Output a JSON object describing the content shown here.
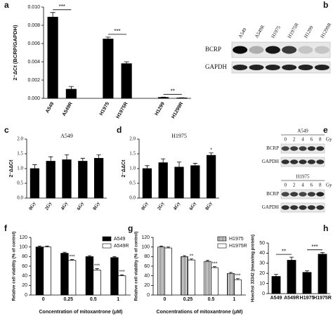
{
  "panel_labels": [
    "a",
    "b",
    "c",
    "d",
    "e",
    "f",
    "g",
    "h"
  ],
  "chart_data": [
    {
      "type": "bar",
      "ylabel": "2⁻ΔCt (BCRP/GAPDH)",
      "categories": [
        "A549",
        "A549R",
        "H1975",
        "H1975R",
        "H1299",
        "H1299R"
      ],
      "values": [
        0.0089,
        0.001,
        0.0065,
        0.0038,
        0.0001,
        5e-05
      ],
      "errors": [
        0.0005,
        0.0003,
        0.0002,
        0.0002,
        3e-05,
        2e-05
      ],
      "color": "#000000",
      "ylim": [
        0,
        0.01
      ],
      "yticks": [
        {
          "value": 0,
          "label": "0.000"
        },
        {
          "value": 0.002,
          "label": "0.002"
        },
        {
          "value": 0.004,
          "label": "0.004"
        },
        {
          "value": 0.006,
          "label": "0.006"
        },
        {
          "value": 0.008,
          "label": "0.008"
        },
        {
          "value": 0.01,
          "label": "0.010"
        }
      ],
      "annotations": [
        "***",
        "***",
        "**"
      ]
    },
    {
      "type": "bar",
      "title": "A549",
      "ylabel": "2⁻ΔΔCt",
      "categories": [
        "0Gy",
        "2Gy",
        "4Gy",
        "6Gy",
        "8Gy"
      ],
      "values": [
        1.0,
        1.25,
        1.3,
        1.25,
        1.35
      ],
      "errors": [
        0.13,
        0.15,
        0.17,
        0.1,
        0.12
      ],
      "color": "#000000",
      "ylim": [
        0,
        2
      ],
      "yticks": [
        {
          "value": 0,
          "label": "0.0"
        },
        0.5,
        {
          "value": 1,
          "label": "1.0"
        },
        1.5,
        {
          "value": 2,
          "label": "2.0"
        }
      ]
    },
    {
      "type": "bar",
      "title": "H1975",
      "ylabel": "2⁻ΔΔCt",
      "categories": [
        "0Gy",
        "2Gy",
        "4Gy",
        "6Gy",
        "8Gy"
      ],
      "values": [
        1.0,
        1.2,
        1.05,
        1.1,
        1.45
      ],
      "errors": [
        0.1,
        0.13,
        0.17,
        0.08,
        0.08
      ],
      "significance": [
        null,
        null,
        null,
        null,
        "*"
      ],
      "color": "#000000",
      "ylim": [
        0,
        2
      ],
      "yticks": [
        {
          "value": 0,
          "label": "0.0"
        },
        0.5,
        {
          "value": 1,
          "label": "1.0"
        },
        1.5,
        {
          "value": 2,
          "label": "2.0"
        }
      ]
    },
    {
      "type": "bar",
      "xlabel": "Concentration of mitoxantrone (μM)",
      "ylabel": "Relative cell viability (% of control)",
      "categories": [
        "0",
        "0.25",
        "0.5",
        "1"
      ],
      "series": [
        {
          "name": "A549",
          "color": "#000000",
          "values": [
            100,
            87,
            80,
            78
          ],
          "errors": [
            2,
            2,
            2,
            2
          ]
        },
        {
          "name": "A549R",
          "color": "#ffffff",
          "values": [
            100,
            72,
            52,
            40
          ],
          "errors": [
            2,
            2,
            3,
            2
          ],
          "significance": [
            null,
            "***",
            "***",
            "***"
          ]
        }
      ],
      "ylim": [
        0,
        120
      ],
      "yticks": [
        0,
        20,
        40,
        60,
        80,
        100,
        120
      ],
      "legend": "top-right"
    },
    {
      "type": "bar",
      "xlabel": "Concentrations of mitoxantrone (μM)",
      "ylabel": "Relative cell viability (% of control)",
      "categories": [
        "0",
        "0.25",
        "0.5",
        "1"
      ],
      "series": [
        {
          "name": "H1975",
          "color": "#888888",
          "pattern": "stripes",
          "values": [
            100,
            80,
            70,
            45
          ],
          "errors": [
            2,
            2,
            2,
            2
          ]
        },
        {
          "name": "H1975R",
          "color": "#ffffff",
          "values": [
            98,
            73,
            57,
            32
          ],
          "errors": [
            2,
            2,
            2,
            2
          ],
          "significance": [
            null,
            "**",
            "***",
            "***"
          ]
        }
      ],
      "ylim": [
        0,
        120
      ],
      "yticks": [
        0,
        20,
        40,
        60,
        80,
        100,
        120
      ],
      "legend": "top-right"
    },
    {
      "type": "bar",
      "ylabel": "Hoechst 33342 (mean/mg protein)",
      "categories": [
        "A549",
        "A549R",
        "H1975",
        "H1975R"
      ],
      "values": [
        17,
        33,
        21,
        39
      ],
      "errors": [
        2,
        3,
        1.5,
        1.5
      ],
      "color": "#000000",
      "ylim": [
        0,
        50
      ],
      "yticks": [
        0,
        10,
        20,
        30,
        40,
        50
      ],
      "annotations": [
        "**",
        "***"
      ]
    }
  ],
  "blots": {
    "b": {
      "lanes": [
        "A549",
        "A549R",
        "H1975",
        "H1975R",
        "H1299",
        "H1299R"
      ],
      "rows": [
        "BCRP",
        "GAPDH"
      ]
    },
    "e": {
      "groups": [
        {
          "title": "A549",
          "lanes": [
            "0",
            "2",
            "4",
            "6",
            "8"
          ],
          "unit": "Gy",
          "rows": [
            "BCRP",
            "GAPDH"
          ]
        },
        {
          "title": "H1975",
          "lanes": [
            "0",
            "2",
            "4",
            "6",
            "8"
          ],
          "unit": "Gy",
          "rows": [
            "BCRP",
            "GAPDH"
          ]
        }
      ]
    }
  }
}
